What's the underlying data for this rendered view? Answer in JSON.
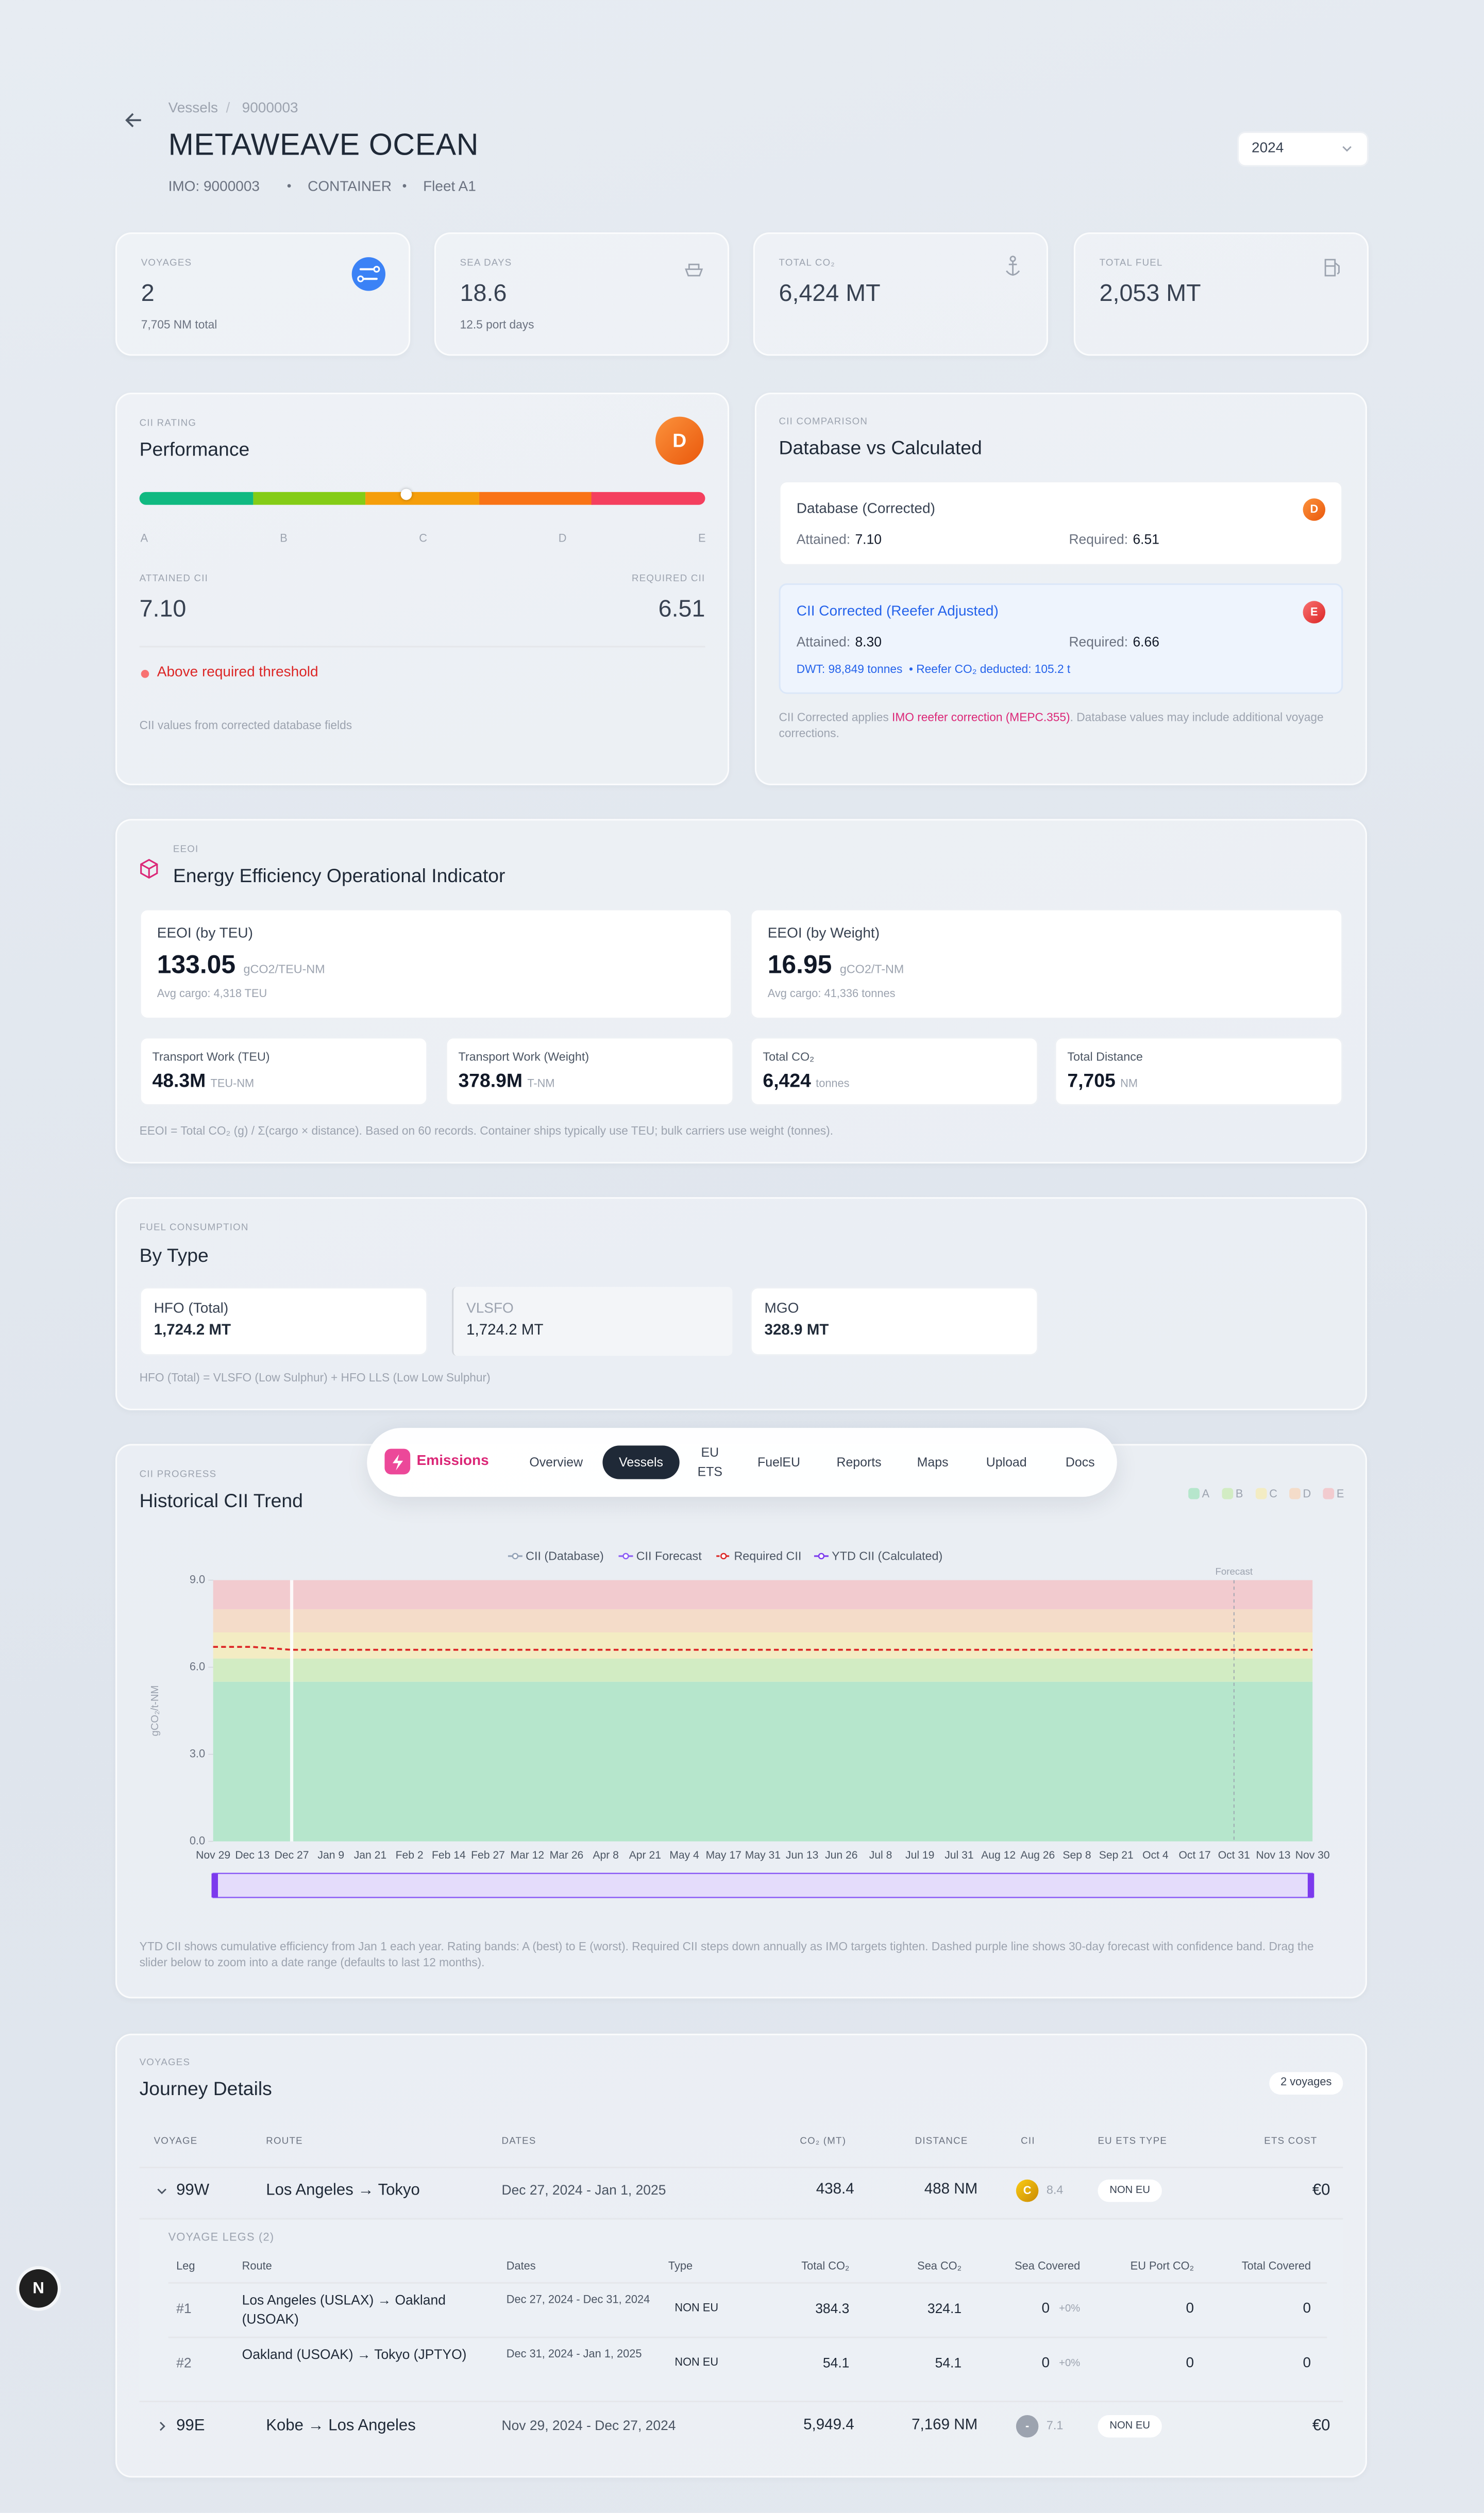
{
  "header": {
    "breadcrumb": {
      "parent": "Vessels",
      "separator": "/",
      "current": "9000003"
    },
    "title": "METAWEAVE OCEAN",
    "meta": [
      "IMO: 9000003",
      "CONTAINER",
      "Fleet A1"
    ],
    "meta_separator": "•",
    "year": "2024"
  },
  "stats": [
    {
      "label": "VOYAGES",
      "value": "2",
      "sub": "7,705 NM total"
    },
    {
      "label": "SEA DAYS",
      "value": "18.6",
      "sub": "12.5 port days"
    },
    {
      "label": "TOTAL CO₂",
      "value": "6,424 MT"
    },
    {
      "label": "TOTAL FUEL",
      "value": "2,053 MT"
    }
  ],
  "cii_rating": {
    "eyebrow": "CII RATING",
    "title": "Performance",
    "grade": "D",
    "scale": [
      "A",
      "B",
      "C",
      "D",
      "E"
    ],
    "attained_label": "ATTAINED CII",
    "attained": "7.10",
    "required_label": "REQUIRED CII",
    "required": "6.51",
    "status": "Above required threshold",
    "note": "CII values from corrected database fields"
  },
  "cii_comparison": {
    "eyebrow": "CII COMPARISON",
    "title": "Database vs Calculated",
    "database": {
      "title": "Database (Corrected)",
      "grade": "D",
      "attained_label": "Attained:",
      "attained": "7.10",
      "required_label": "Required:",
      "required": "6.51"
    },
    "corrected": {
      "title": "CII Corrected (Reefer Adjusted)",
      "grade": "E",
      "attained_label": "Attained:",
      "attained": "8.30",
      "required_label": "Required:",
      "required": "6.66",
      "detail": "DWT: 98,849 tonnes  • Reefer CO₂ deducted: 105.2 t"
    },
    "note": {
      "before": "CII Corrected applies ",
      "link": "IMO reefer correction (MEPC.355)",
      "after": ". Database values may include additional voyage corrections."
    }
  },
  "eeoi": {
    "eyebrow": "EEOI",
    "title": "Energy Efficiency Operational Indicator",
    "primary": [
      {
        "label": "EEOI (by TEU)",
        "value": "133.05",
        "unit": "gCO2/TEU-NM",
        "sub": "Avg cargo: 4,318 TEU"
      },
      {
        "label": "EEOI (by Weight)",
        "value": "16.95",
        "unit": "gCO2/T-NM",
        "sub": "Avg cargo: 41,336 tonnes"
      }
    ],
    "secondary": [
      {
        "label": "Transport Work (TEU)",
        "value": "48.3M",
        "unit": "TEU-NM"
      },
      {
        "label": "Transport Work (Weight)",
        "value": "378.9M",
        "unit": "T-NM"
      },
      {
        "label": "Total CO₂",
        "value": "6,424",
        "unit": "tonnes"
      },
      {
        "label": "Total Distance",
        "value": "7,705",
        "unit": "NM"
      }
    ],
    "note": "EEOI = Total CO₂ (g) / Σ(cargo × distance). Based on 60 records. Container ships typically use TEU; bulk carriers use weight (tonnes)."
  },
  "fuel": {
    "eyebrow": "FUEL CONSUMPTION",
    "title": "By Type",
    "items": [
      {
        "label": "HFO (Total)",
        "value": "1,724.2 MT"
      },
      {
        "label": "VLSFO",
        "value": "1,724.2 MT"
      },
      {
        "label": "MGO",
        "value": "328.9 MT"
      }
    ],
    "note": "HFO (Total) = VLSFO (Low Sulphur) + HFO LLS (Low Low Sulphur)"
  },
  "nav": {
    "brand": "Emissions",
    "items": [
      "Overview",
      "Vessels",
      "EU ETS",
      "FuelEU",
      "Reports",
      "Maps",
      "Upload",
      "Docs"
    ],
    "active": "Vessels"
  },
  "cii_trend": {
    "eyebrow": "CII PROGRESS",
    "chart_data": {
      "type": "line",
      "title": "Historical CII Trend",
      "y_label": "gCO₂/t-NM",
      "categories": [
        "Nov 29",
        "Dec 13",
        "Dec 27",
        "Jan 9",
        "Jan 21",
        "Feb 2",
        "Feb 14",
        "Feb 27",
        "Mar 12",
        "Mar 26",
        "Apr 8",
        "Apr 21",
        "May 4",
        "May 17",
        "May 31",
        "Jun 13",
        "Jun 26",
        "Jul 8",
        "Jul 19",
        "Jul 31",
        "Aug 12",
        "Aug 26",
        "Sep 8",
        "Sep 21",
        "Oct 4",
        "Oct 17",
        "Oct 31",
        "Nov 13",
        "Nov 30"
      ],
      "ylim": [
        0,
        9
      ],
      "yticks": [
        {
          "value": 0,
          "label": "0.0"
        },
        {
          "value": 3,
          "label": "3.0"
        },
        {
          "value": 6,
          "label": "6.0"
        },
        {
          "value": 9,
          "label": "9.0"
        }
      ],
      "bands": [
        {
          "name": "A",
          "color": "#b6e6cc",
          "from": 0,
          "to": 5.5
        },
        {
          "name": "B",
          "color": "#d2ecc3",
          "from": 5.5,
          "to": 6.3
        },
        {
          "name": "C",
          "color": "#f3ecc3",
          "from": 6.3,
          "to": 7.2
        },
        {
          "name": "D",
          "color": "#f4dcc9",
          "from": 7.2,
          "to": 8
        },
        {
          "name": "E",
          "color": "#f2cbcf",
          "from": 8,
          "to": 9
        }
      ],
      "series": [
        {
          "name": "CII (Database)",
          "color": "#94a3b8"
        },
        {
          "name": "CII Forecast",
          "color": "#8b5cf6"
        },
        {
          "name": "Required CII",
          "color": "#dc2626",
          "dashed": true,
          "values": [
            6.7,
            6.7,
            6.6,
            6.6,
            6.6,
            6.6,
            6.6,
            6.6,
            6.6,
            6.6,
            6.6,
            6.6,
            6.6,
            6.6,
            6.6,
            6.6,
            6.6,
            6.6,
            6.6,
            6.6,
            6.6,
            6.6,
            6.6,
            6.6,
            6.6,
            6.6,
            6.6,
            6.6,
            6.6
          ]
        },
        {
          "name": "YTD CII (Calculated)",
          "color": "#7c3aed"
        }
      ],
      "annotation": {
        "text": "Forecast",
        "x": "Oct 31"
      }
    },
    "note": "YTD CII shows cumulative efficiency from Jan 1 each year. Rating bands: A (best) to E (worst). Required CII steps down annually as IMO targets tighten. Dashed purple line shows 30-day forecast with confidence band. Drag the slider below to zoom into a date range (defaults to last 12 months)."
  },
  "journeys": {
    "eyebrow": "VOYAGES",
    "title": "Journey Details",
    "count": "2 voyages",
    "columns": [
      "VOYAGE",
      "ROUTE",
      "DATES",
      "CO₂ (MT)",
      "DISTANCE",
      "CII",
      "EU ETS TYPE",
      "ETS COST"
    ],
    "leg_columns": [
      "Leg",
      "Route",
      "Dates",
      "Type",
      "Total CO₂",
      "Sea CO₂",
      "Sea Covered",
      "EU Port CO₂",
      "Total Covered"
    ],
    "voyages": [
      {
        "id": "99W",
        "route": "Los Angeles → Tokyo",
        "dates": "Dec 27, 2024 - Jan 1, 2025",
        "co2": "438.4",
        "distance": "488 NM",
        "cii_grade": "C",
        "cii": "8.4",
        "ets_type": "NON EU",
        "ets_cost": "€0",
        "legs_title": "VOYAGE LEGS (2)",
        "legs": [
          {
            "leg": "#1",
            "route": "Los Angeles (USLAX) → Oakland (USOAK)",
            "dates": "Dec 27, 2024 - Dec 31, 2024",
            "type": "NON EU",
            "total_co2": "384.3",
            "sea_co2": "324.1",
            "sea_covered": "0",
            "sea_covered_pct": "+0%",
            "eu_port_co2": "0",
            "total_covered": "0"
          },
          {
            "leg": "#2",
            "route": "Oakland (USOAK) → Tokyo (JPTYO)",
            "dates": "Dec 31, 2024 - Jan 1, 2025",
            "type": "NON EU",
            "total_co2": "54.1",
            "sea_co2": "54.1",
            "sea_covered": "0",
            "sea_covered_pct": "+0%",
            "eu_port_co2": "0",
            "total_covered": "0"
          }
        ]
      },
      {
        "id": "99E",
        "route": "Kobe → Los Angeles",
        "dates": "Nov 29, 2024 - Dec 27, 2024",
        "co2": "5,949.4",
        "distance": "7,169 NM",
        "cii_grade": "-",
        "cii": "7.1",
        "ets_type": "NON EU",
        "ets_cost": "€0"
      }
    ]
  },
  "dev_badge": "N"
}
